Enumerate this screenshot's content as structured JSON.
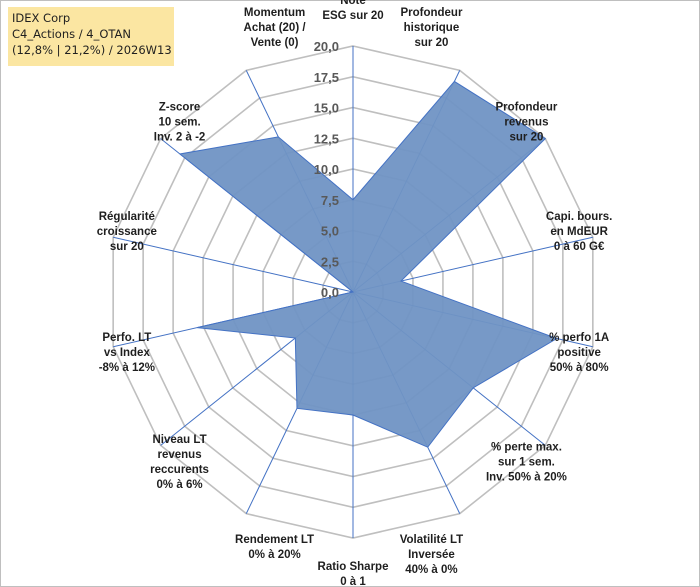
{
  "header": {
    "company": "IDEX Corp",
    "portfolio": "C4_Actions / 4_OTAN",
    "stats": "(12,8% | 21,2%) / 2026W13"
  },
  "chart_data": {
    "type": "radar",
    "title": "IDEX Corp",
    "rlim": [
      0,
      20
    ],
    "ticks": [
      "0,0",
      "2,5",
      "5,0",
      "7,5",
      "10,0",
      "12,5",
      "15,0",
      "17,5",
      "20,0"
    ],
    "tick_values": [
      0,
      2.5,
      5,
      7.5,
      10,
      12.5,
      15,
      17.5,
      20
    ],
    "axes": [
      {
        "label": [
          "Note",
          "ESG sur 20"
        ],
        "value": 7.5
      },
      {
        "label": [
          "Profondeur",
          "historique",
          "sur 20"
        ],
        "value": 19.0
      },
      {
        "label": [
          "Profondeur",
          "revenus",
          "sur 20"
        ],
        "value": 20.0
      },
      {
        "label": [
          "Capi. bours.",
          "en MdEUR",
          "0 à 60 G€"
        ],
        "value": 4.0
      },
      {
        "label": [
          "% perfo 1A",
          "positive",
          "50% à 80%"
        ],
        "value": 17.0
      },
      {
        "label": [
          "% perte max.",
          "sur 1 sem.",
          "Inv. 50% à 20%"
        ],
        "value": 12.5
      },
      {
        "label": [
          "Volatilité LT",
          "Inversée",
          "40% à 0%"
        ],
        "value": 14.0
      },
      {
        "label": [
          "Ratio Sharpe",
          "0 à 1"
        ],
        "value": 10.0
      },
      {
        "label": [
          "Rendement LT",
          "0% à 20%"
        ],
        "value": 10.5
      },
      {
        "label": [
          "Niveau LT",
          "revenus",
          "reccurents",
          "0% à 6%"
        ],
        "value": 6.0
      },
      {
        "label": [
          "Perfo. LT",
          "vs Index",
          "-8% à 12%"
        ],
        "value": 13.0
      },
      {
        "label": [
          "Régularité",
          "croissance",
          "sur 20"
        ],
        "value": 0.0
      },
      {
        "label": [
          "Z-score",
          "10 sem.",
          "Inv. 2 à -2"
        ],
        "value": 18.0
      },
      {
        "label": [
          "Momentum",
          "Achat (20) /",
          "Vente (0)"
        ],
        "value": 14.0
      }
    ],
    "fill_color": "#7094c4",
    "line_color": "#4472c4",
    "spoke_color": "#4472c4",
    "grid_color": "#bfbfbf"
  }
}
